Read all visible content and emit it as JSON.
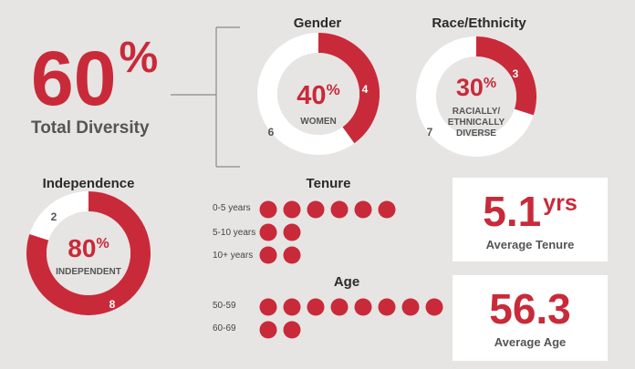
{
  "summary": {
    "value": "60",
    "unit": "%",
    "label": "Total Diversity"
  },
  "colors": {
    "accent": "#c92a3a",
    "ring_bg": "#ffffff",
    "text_grey": "#555555",
    "background": "#e6e5e3"
  },
  "chart_data": [
    {
      "type": "pie",
      "title": "Gender",
      "center_value": "40",
      "center_unit": "%",
      "center_label": "WOMEN",
      "slices": [
        {
          "label": "4",
          "value": 4,
          "highlight": true
        },
        {
          "label": "6",
          "value": 6,
          "highlight": false
        }
      ]
    },
    {
      "type": "pie",
      "title": "Race/Ethnicity",
      "center_value": "30",
      "center_unit": "%",
      "center_label_lines": [
        "RACIALLY/",
        "ETHNICALLY",
        "DIVERSE"
      ],
      "slices": [
        {
          "label": "3",
          "value": 3,
          "highlight": true
        },
        {
          "label": "7",
          "value": 7,
          "highlight": false
        }
      ]
    },
    {
      "type": "pie",
      "title": "Independence",
      "center_value": "80",
      "center_unit": "%",
      "center_label": "INDEPENDENT",
      "slices": [
        {
          "label": "8",
          "value": 8,
          "highlight": true
        },
        {
          "label": "2",
          "value": 2,
          "highlight": false
        }
      ]
    },
    {
      "type": "bar",
      "title": "Tenure",
      "categories": [
        "0-5 years",
        "5-10 years",
        "10+ years"
      ],
      "values": [
        6,
        2,
        2
      ]
    },
    {
      "type": "bar",
      "title": "Age",
      "categories": [
        "50-59",
        "60-69"
      ],
      "values": [
        8,
        2
      ]
    }
  ],
  "stats": {
    "tenure": {
      "value": "5.1",
      "unit": "yrs",
      "label": "Average Tenure"
    },
    "age": {
      "value": "56.3",
      "label": "Average Age"
    }
  }
}
